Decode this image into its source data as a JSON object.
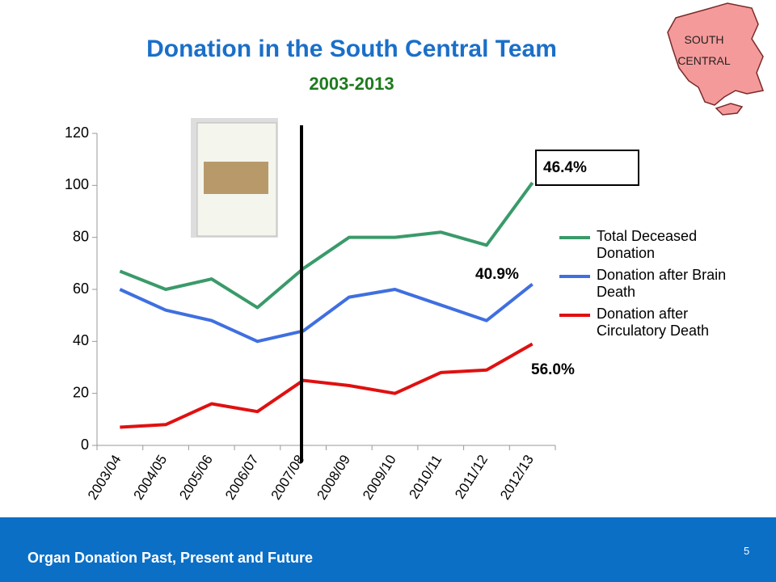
{
  "chart_data": {
    "type": "line",
    "title": "Donation in the South Central Team",
    "subtitle": "2003-2013",
    "categories": [
      "2003/04",
      "2004/05",
      "2005/06",
      "2006/07",
      "2007/08",
      "2008/09",
      "2009/10",
      "2010/11",
      "2011/12",
      "2012/13"
    ],
    "series": [
      {
        "name": "Total Deceased Donation",
        "color": "#3a9a6a",
        "values": [
          67,
          60,
          64,
          53,
          68,
          80,
          80,
          82,
          77,
          101
        ]
      },
      {
        "name": "Donation after Brain Death",
        "color": "#3f6fe0",
        "values": [
          60,
          52,
          48,
          40,
          44,
          57,
          60,
          54,
          48,
          62
        ]
      },
      {
        "name": "Donation after Circulatory Death",
        "color": "#e01010",
        "values": [
          7,
          8,
          16,
          13,
          25,
          23,
          20,
          28,
          29,
          39
        ]
      }
    ],
    "ylim": [
      0,
      120
    ],
    "yticks": [
      0,
      20,
      40,
      60,
      80,
      100,
      120
    ],
    "annotations": [
      "46.4%",
      "40.9%",
      "56.0%"
    ],
    "legend": "right"
  },
  "map_label": "SOUTH CENTRAL",
  "footer": {
    "title": "Organ Donation Past, Present and Future",
    "page": "5"
  }
}
